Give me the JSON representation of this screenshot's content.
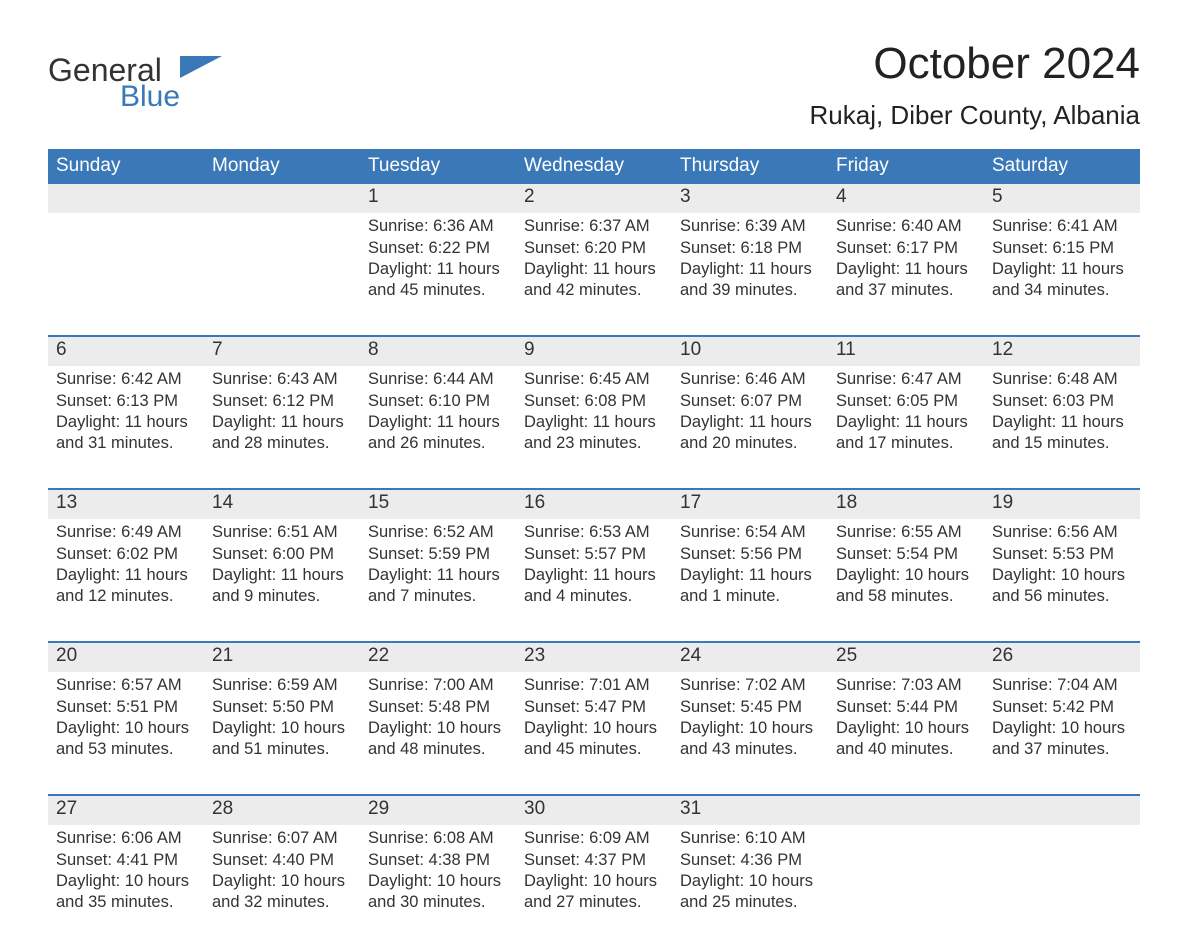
{
  "brand": {
    "logo_word1": "General",
    "logo_word2": "Blue",
    "logo_word1_color": "#333333",
    "logo_word2_color": "#3a78b8",
    "flag_color": "#3a78b8"
  },
  "title": {
    "month_year": "October 2024",
    "location": "Rukaj, Diber County, Albania"
  },
  "colors": {
    "header_band": "#3a78b8",
    "header_text": "#ffffff",
    "date_band_bg": "#ececec",
    "week_divider": "#3a78b8",
    "body_text": "#333333",
    "page_bg": "#ffffff"
  },
  "fonts": {
    "family": "Arial",
    "month_title_pt": 44,
    "location_pt": 26,
    "dow_pt": 19,
    "date_pt": 19,
    "detail_pt": 16.5
  },
  "days_of_week": [
    "Sunday",
    "Monday",
    "Tuesday",
    "Wednesday",
    "Thursday",
    "Friday",
    "Saturday"
  ],
  "weeks": [
    [
      {
        "date": "",
        "sunrise": "",
        "sunset": "",
        "daylight": ""
      },
      {
        "date": "",
        "sunrise": "",
        "sunset": "",
        "daylight": ""
      },
      {
        "date": "1",
        "sunrise": "Sunrise: 6:36 AM",
        "sunset": "Sunset: 6:22 PM",
        "daylight": "Daylight: 11 hours and 45 minutes."
      },
      {
        "date": "2",
        "sunrise": "Sunrise: 6:37 AM",
        "sunset": "Sunset: 6:20 PM",
        "daylight": "Daylight: 11 hours and 42 minutes."
      },
      {
        "date": "3",
        "sunrise": "Sunrise: 6:39 AM",
        "sunset": "Sunset: 6:18 PM",
        "daylight": "Daylight: 11 hours and 39 minutes."
      },
      {
        "date": "4",
        "sunrise": "Sunrise: 6:40 AM",
        "sunset": "Sunset: 6:17 PM",
        "daylight": "Daylight: 11 hours and 37 minutes."
      },
      {
        "date": "5",
        "sunrise": "Sunrise: 6:41 AM",
        "sunset": "Sunset: 6:15 PM",
        "daylight": "Daylight: 11 hours and 34 minutes."
      }
    ],
    [
      {
        "date": "6",
        "sunrise": "Sunrise: 6:42 AM",
        "sunset": "Sunset: 6:13 PM",
        "daylight": "Daylight: 11 hours and 31 minutes."
      },
      {
        "date": "7",
        "sunrise": "Sunrise: 6:43 AM",
        "sunset": "Sunset: 6:12 PM",
        "daylight": "Daylight: 11 hours and 28 minutes."
      },
      {
        "date": "8",
        "sunrise": "Sunrise: 6:44 AM",
        "sunset": "Sunset: 6:10 PM",
        "daylight": "Daylight: 11 hours and 26 minutes."
      },
      {
        "date": "9",
        "sunrise": "Sunrise: 6:45 AM",
        "sunset": "Sunset: 6:08 PM",
        "daylight": "Daylight: 11 hours and 23 minutes."
      },
      {
        "date": "10",
        "sunrise": "Sunrise: 6:46 AM",
        "sunset": "Sunset: 6:07 PM",
        "daylight": "Daylight: 11 hours and 20 minutes."
      },
      {
        "date": "11",
        "sunrise": "Sunrise: 6:47 AM",
        "sunset": "Sunset: 6:05 PM",
        "daylight": "Daylight: 11 hours and 17 minutes."
      },
      {
        "date": "12",
        "sunrise": "Sunrise: 6:48 AM",
        "sunset": "Sunset: 6:03 PM",
        "daylight": "Daylight: 11 hours and 15 minutes."
      }
    ],
    [
      {
        "date": "13",
        "sunrise": "Sunrise: 6:49 AM",
        "sunset": "Sunset: 6:02 PM",
        "daylight": "Daylight: 11 hours and 12 minutes."
      },
      {
        "date": "14",
        "sunrise": "Sunrise: 6:51 AM",
        "sunset": "Sunset: 6:00 PM",
        "daylight": "Daylight: 11 hours and 9 minutes."
      },
      {
        "date": "15",
        "sunrise": "Sunrise: 6:52 AM",
        "sunset": "Sunset: 5:59 PM",
        "daylight": "Daylight: 11 hours and 7 minutes."
      },
      {
        "date": "16",
        "sunrise": "Sunrise: 6:53 AM",
        "sunset": "Sunset: 5:57 PM",
        "daylight": "Daylight: 11 hours and 4 minutes."
      },
      {
        "date": "17",
        "sunrise": "Sunrise: 6:54 AM",
        "sunset": "Sunset: 5:56 PM",
        "daylight": "Daylight: 11 hours and 1 minute."
      },
      {
        "date": "18",
        "sunrise": "Sunrise: 6:55 AM",
        "sunset": "Sunset: 5:54 PM",
        "daylight": "Daylight: 10 hours and 58 minutes."
      },
      {
        "date": "19",
        "sunrise": "Sunrise: 6:56 AM",
        "sunset": "Sunset: 5:53 PM",
        "daylight": "Daylight: 10 hours and 56 minutes."
      }
    ],
    [
      {
        "date": "20",
        "sunrise": "Sunrise: 6:57 AM",
        "sunset": "Sunset: 5:51 PM",
        "daylight": "Daylight: 10 hours and 53 minutes."
      },
      {
        "date": "21",
        "sunrise": "Sunrise: 6:59 AM",
        "sunset": "Sunset: 5:50 PM",
        "daylight": "Daylight: 10 hours and 51 minutes."
      },
      {
        "date": "22",
        "sunrise": "Sunrise: 7:00 AM",
        "sunset": "Sunset: 5:48 PM",
        "daylight": "Daylight: 10 hours and 48 minutes."
      },
      {
        "date": "23",
        "sunrise": "Sunrise: 7:01 AM",
        "sunset": "Sunset: 5:47 PM",
        "daylight": "Daylight: 10 hours and 45 minutes."
      },
      {
        "date": "24",
        "sunrise": "Sunrise: 7:02 AM",
        "sunset": "Sunset: 5:45 PM",
        "daylight": "Daylight: 10 hours and 43 minutes."
      },
      {
        "date": "25",
        "sunrise": "Sunrise: 7:03 AM",
        "sunset": "Sunset: 5:44 PM",
        "daylight": "Daylight: 10 hours and 40 minutes."
      },
      {
        "date": "26",
        "sunrise": "Sunrise: 7:04 AM",
        "sunset": "Sunset: 5:42 PM",
        "daylight": "Daylight: 10 hours and 37 minutes."
      }
    ],
    [
      {
        "date": "27",
        "sunrise": "Sunrise: 6:06 AM",
        "sunset": "Sunset: 4:41 PM",
        "daylight": "Daylight: 10 hours and 35 minutes."
      },
      {
        "date": "28",
        "sunrise": "Sunrise: 6:07 AM",
        "sunset": "Sunset: 4:40 PM",
        "daylight": "Daylight: 10 hours and 32 minutes."
      },
      {
        "date": "29",
        "sunrise": "Sunrise: 6:08 AM",
        "sunset": "Sunset: 4:38 PM",
        "daylight": "Daylight: 10 hours and 30 minutes."
      },
      {
        "date": "30",
        "sunrise": "Sunrise: 6:09 AM",
        "sunset": "Sunset: 4:37 PM",
        "daylight": "Daylight: 10 hours and 27 minutes."
      },
      {
        "date": "31",
        "sunrise": "Sunrise: 6:10 AM",
        "sunset": "Sunset: 4:36 PM",
        "daylight": "Daylight: 10 hours and 25 minutes."
      },
      {
        "date": "",
        "sunrise": "",
        "sunset": "",
        "daylight": ""
      },
      {
        "date": "",
        "sunrise": "",
        "sunset": "",
        "daylight": ""
      }
    ]
  ]
}
